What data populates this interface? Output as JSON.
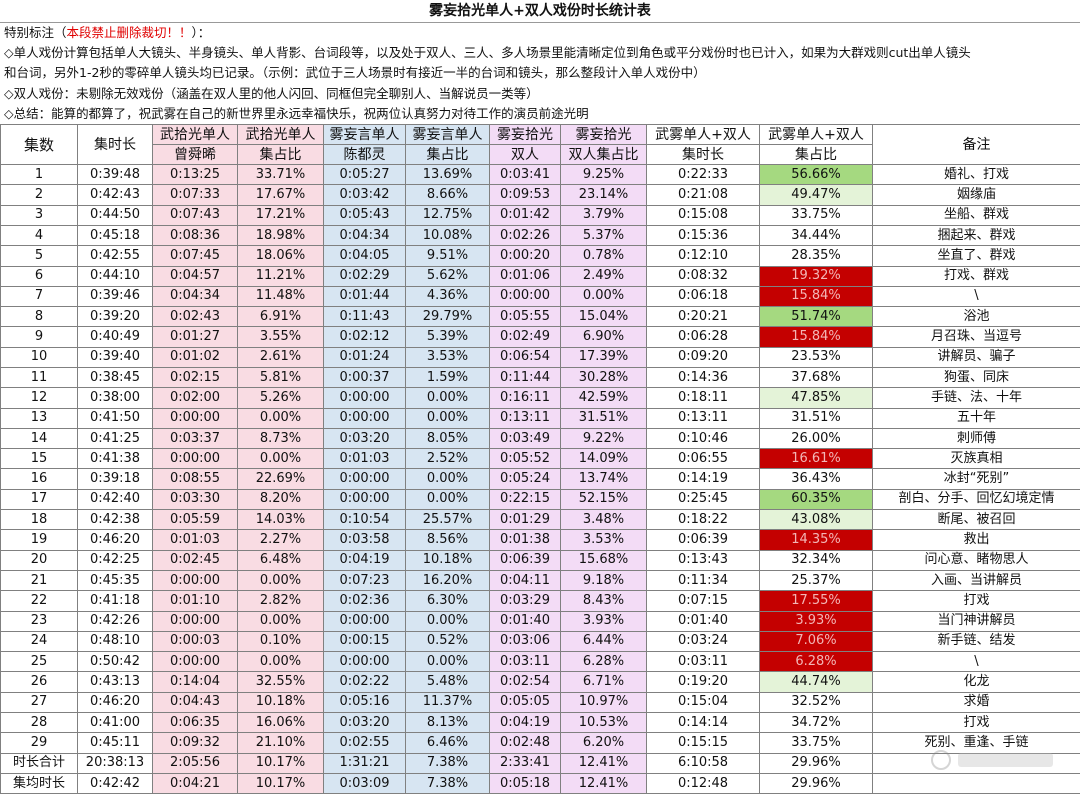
{
  "title": "雾妄拾光单人+双人戏份时长统计表",
  "notes": {
    "special_prefix": "特别标注（",
    "special_warn": "本段禁止删除裁切！！",
    "special_suffix": "）：",
    "line1": "◇单人戏份计算包括单人大镜头、半身镜头、单人背影、台词段等，以及处于双人、三人、多人场景里能清晰定位到角色或平分戏份时也已计入，如果为大群戏则cut出单人镜头",
    "line2": "和台词，另外1-2秒的零碎单人镜头均已记录。（示例：武位于三人场景时有接近一半的台词和镜头，那么整段计入单人戏份中）",
    "line3": "◇双人戏份：未剔除无效戏份（涵盖在双人里的他人闪回、同框但完全聊别人、当解说员一类等）",
    "line4": "◇总结：能算的都算了，祝武雾在自己的新世界里永远幸福快乐，祝两位认真努力对待工作的演员前途光明"
  },
  "header": {
    "ep": "集数",
    "dur": "集时长",
    "h1a": "武拾光单人",
    "h1b": "曾舜晞",
    "h2a": "武拾光单人",
    "h2b": "集占比",
    "h3a": "雾妄言单人",
    "h3b": "陈都灵",
    "h4a": "雾妄言单人",
    "h4b": "集占比",
    "h5a": "雾妄拾光",
    "h5b": "双人",
    "h6a": "雾妄拾光",
    "h6b": "双人集占比",
    "h7a": "武雾单人+双人",
    "h7b": "集时长",
    "h8a": "武雾单人+双人",
    "h8b": "集占比",
    "note": "备注"
  },
  "rows": [
    {
      "ep": "1",
      "dur": "0:39:48",
      "wu": "0:13:25",
      "wup": "33.71%",
      "xu": "0:05:27",
      "xup": "13.69%",
      "duo": "0:03:41",
      "duop": "9.25%",
      "tot": "0:22:33",
      "totp": "56.66%",
      "hl": "green",
      "note": "婚礼、打戏"
    },
    {
      "ep": "2",
      "dur": "0:42:43",
      "wu": "0:07:33",
      "wup": "17.67%",
      "xu": "0:03:42",
      "xup": "8.66%",
      "duo": "0:09:53",
      "duop": "23.14%",
      "tot": "0:21:08",
      "totp": "49.47%",
      "hl": "lightgreen",
      "note": "姻缘庙"
    },
    {
      "ep": "3",
      "dur": "0:44:50",
      "wu": "0:07:43",
      "wup": "17.21%",
      "xu": "0:05:43",
      "xup": "12.75%",
      "duo": "0:01:42",
      "duop": "3.79%",
      "tot": "0:15:08",
      "totp": "33.75%",
      "hl": "",
      "note": "坐船、群戏"
    },
    {
      "ep": "4",
      "dur": "0:45:18",
      "wu": "0:08:36",
      "wup": "18.98%",
      "xu": "0:04:34",
      "xup": "10.08%",
      "duo": "0:02:26",
      "duop": "5.37%",
      "tot": "0:15:36",
      "totp": "34.44%",
      "hl": "",
      "note": "捆起来、群戏"
    },
    {
      "ep": "5",
      "dur": "0:42:55",
      "wu": "0:07:45",
      "wup": "18.06%",
      "xu": "0:04:05",
      "xup": "9.51%",
      "duo": "0:00:20",
      "duop": "0.78%",
      "tot": "0:12:10",
      "totp": "28.35%",
      "hl": "",
      "note": "坐直了、群戏"
    },
    {
      "ep": "6",
      "dur": "0:44:10",
      "wu": "0:04:57",
      "wup": "11.21%",
      "xu": "0:02:29",
      "xup": "5.62%",
      "duo": "0:01:06",
      "duop": "2.49%",
      "tot": "0:08:32",
      "totp": "19.32%",
      "hl": "red",
      "note": "打戏、群戏"
    },
    {
      "ep": "7",
      "dur": "0:39:46",
      "wu": "0:04:34",
      "wup": "11.48%",
      "xu": "0:01:44",
      "xup": "4.36%",
      "duo": "0:00:00",
      "duop": "0.00%",
      "tot": "0:06:18",
      "totp": "15.84%",
      "hl": "red",
      "note": "\\"
    },
    {
      "ep": "8",
      "dur": "0:39:20",
      "wu": "0:02:43",
      "wup": "6.91%",
      "xu": "0:11:43",
      "xup": "29.79%",
      "duo": "0:05:55",
      "duop": "15.04%",
      "tot": "0:20:21",
      "totp": "51.74%",
      "hl": "green",
      "note": "浴池"
    },
    {
      "ep": "9",
      "dur": "0:40:49",
      "wu": "0:01:27",
      "wup": "3.55%",
      "xu": "0:02:12",
      "xup": "5.39%",
      "duo": "0:02:49",
      "duop": "6.90%",
      "tot": "0:06:28",
      "totp": "15.84%",
      "hl": "red",
      "note": "月召珠、当逗号"
    },
    {
      "ep": "10",
      "dur": "0:39:40",
      "wu": "0:01:02",
      "wup": "2.61%",
      "xu": "0:01:24",
      "xup": "3.53%",
      "duo": "0:06:54",
      "duop": "17.39%",
      "tot": "0:09:20",
      "totp": "23.53%",
      "hl": "",
      "note": "讲解员、骗子"
    },
    {
      "ep": "11",
      "dur": "0:38:45",
      "wu": "0:02:15",
      "wup": "5.81%",
      "xu": "0:00:37",
      "xup": "1.59%",
      "duo": "0:11:44",
      "duop": "30.28%",
      "tot": "0:14:36",
      "totp": "37.68%",
      "hl": "",
      "note": "狗蛋、同床"
    },
    {
      "ep": "12",
      "dur": "0:38:00",
      "wu": "0:02:00",
      "wup": "5.26%",
      "xu": "0:00:00",
      "xup": "0.00%",
      "duo": "0:16:11",
      "duop": "42.59%",
      "tot": "0:18:11",
      "totp": "47.85%",
      "hl": "lightgreen",
      "note": "手链、法、十年"
    },
    {
      "ep": "13",
      "dur": "0:41:50",
      "wu": "0:00:00",
      "wup": "0.00%",
      "xu": "0:00:00",
      "xup": "0.00%",
      "duo": "0:13:11",
      "duop": "31.51%",
      "tot": "0:13:11",
      "totp": "31.51%",
      "hl": "",
      "note": "五十年"
    },
    {
      "ep": "14",
      "dur": "0:41:25",
      "wu": "0:03:37",
      "wup": "8.73%",
      "xu": "0:03:20",
      "xup": "8.05%",
      "duo": "0:03:49",
      "duop": "9.22%",
      "tot": "0:10:46",
      "totp": "26.00%",
      "hl": "",
      "note": "刺师傅"
    },
    {
      "ep": "15",
      "dur": "0:41:38",
      "wu": "0:00:00",
      "wup": "0.00%",
      "xu": "0:01:03",
      "xup": "2.52%",
      "duo": "0:05:52",
      "duop": "14.09%",
      "tot": "0:06:55",
      "totp": "16.61%",
      "hl": "red",
      "note": "灭族真相"
    },
    {
      "ep": "16",
      "dur": "0:39:18",
      "wu": "0:08:55",
      "wup": "22.69%",
      "xu": "0:00:00",
      "xup": "0.00%",
      "duo": "0:05:24",
      "duop": "13.74%",
      "tot": "0:14:19",
      "totp": "36.43%",
      "hl": "",
      "note": "冰封“死别”"
    },
    {
      "ep": "17",
      "dur": "0:42:40",
      "wu": "0:03:30",
      "wup": "8.20%",
      "xu": "0:00:00",
      "xup": "0.00%",
      "duo": "0:22:15",
      "duop": "52.15%",
      "tot": "0:25:45",
      "totp": "60.35%",
      "hl": "green",
      "note": "剖白、分手、回忆幻境定情"
    },
    {
      "ep": "18",
      "dur": "0:42:38",
      "wu": "0:05:59",
      "wup": "14.03%",
      "xu": "0:10:54",
      "xup": "25.57%",
      "duo": "0:01:29",
      "duop": "3.48%",
      "tot": "0:18:22",
      "totp": "43.08%",
      "hl": "lightgreen",
      "note": "断尾、被召回"
    },
    {
      "ep": "19",
      "dur": "0:46:20",
      "wu": "0:01:03",
      "wup": "2.27%",
      "xu": "0:03:58",
      "xup": "8.56%",
      "duo": "0:01:38",
      "duop": "3.53%",
      "tot": "0:06:39",
      "totp": "14.35%",
      "hl": "red",
      "note": "救出"
    },
    {
      "ep": "20",
      "dur": "0:42:25",
      "wu": "0:02:45",
      "wup": "6.48%",
      "xu": "0:04:19",
      "xup": "10.18%",
      "duo": "0:06:39",
      "duop": "15.68%",
      "tot": "0:13:43",
      "totp": "32.34%",
      "hl": "",
      "note": "问心意、睹物思人"
    },
    {
      "ep": "21",
      "dur": "0:45:35",
      "wu": "0:00:00",
      "wup": "0.00%",
      "xu": "0:07:23",
      "xup": "16.20%",
      "duo": "0:04:11",
      "duop": "9.18%",
      "tot": "0:11:34",
      "totp": "25.37%",
      "hl": "",
      "note": "入画、当讲解员"
    },
    {
      "ep": "22",
      "dur": "0:41:18",
      "wu": "0:01:10",
      "wup": "2.82%",
      "xu": "0:02:36",
      "xup": "6.30%",
      "duo": "0:03:29",
      "duop": "8.43%",
      "tot": "0:07:15",
      "totp": "17.55%",
      "hl": "red",
      "note": "打戏"
    },
    {
      "ep": "23",
      "dur": "0:42:26",
      "wu": "0:00:00",
      "wup": "0.00%",
      "xu": "0:00:00",
      "xup": "0.00%",
      "duo": "0:01:40",
      "duop": "3.93%",
      "tot": "0:01:40",
      "totp": "3.93%",
      "hl": "red",
      "note": "当门神讲解员"
    },
    {
      "ep": "24",
      "dur": "0:48:10",
      "wu": "0:00:03",
      "wup": "0.10%",
      "xu": "0:00:15",
      "xup": "0.52%",
      "duo": "0:03:06",
      "duop": "6.44%",
      "tot": "0:03:24",
      "totp": "7.06%",
      "hl": "red",
      "note": "新手链、结发"
    },
    {
      "ep": "25",
      "dur": "0:50:42",
      "wu": "0:00:00",
      "wup": "0.00%",
      "xu": "0:00:00",
      "xup": "0.00%",
      "duo": "0:03:11",
      "duop": "6.28%",
      "tot": "0:03:11",
      "totp": "6.28%",
      "hl": "red",
      "note": "\\"
    },
    {
      "ep": "26",
      "dur": "0:43:13",
      "wu": "0:14:04",
      "wup": "32.55%",
      "xu": "0:02:22",
      "xup": "5.48%",
      "duo": "0:02:54",
      "duop": "6.71%",
      "tot": "0:19:20",
      "totp": "44.74%",
      "hl": "lightgreen",
      "note": "化龙"
    },
    {
      "ep": "27",
      "dur": "0:46:20",
      "wu": "0:04:43",
      "wup": "10.18%",
      "xu": "0:05:16",
      "xup": "11.37%",
      "duo": "0:05:05",
      "duop": "10.97%",
      "tot": "0:15:04",
      "totp": "32.52%",
      "hl": "",
      "note": "求婚"
    },
    {
      "ep": "28",
      "dur": "0:41:00",
      "wu": "0:06:35",
      "wup": "16.06%",
      "xu": "0:03:20",
      "xup": "8.13%",
      "duo": "0:04:19",
      "duop": "10.53%",
      "tot": "0:14:14",
      "totp": "34.72%",
      "hl": "",
      "note": "打戏"
    },
    {
      "ep": "29",
      "dur": "0:45:11",
      "wu": "0:09:32",
      "wup": "21.10%",
      "xu": "0:02:55",
      "xup": "6.46%",
      "duo": "0:02:48",
      "duop": "6.20%",
      "tot": "0:15:15",
      "totp": "33.75%",
      "hl": "",
      "note": "死别、重逢、手链"
    },
    {
      "ep": "时长合计",
      "dur": "20:38:13",
      "wu": "2:05:56",
      "wup": "10.17%",
      "xu": "1:31:21",
      "xup": "7.38%",
      "duo": "2:33:41",
      "duop": "12.41%",
      "tot": "6:10:58",
      "totp": "29.96%",
      "hl": "",
      "note": ""
    },
    {
      "ep": "集均时长",
      "dur": "0:42:42",
      "wu": "0:04:21",
      "wup": "10.17%",
      "xu": "0:03:09",
      "xup": "7.38%",
      "duo": "0:05:18",
      "duop": "12.41%",
      "tot": "0:12:48",
      "totp": "29.96%",
      "hl": "",
      "note": ""
    }
  ],
  "colors": {
    "pink": "#f9dce3",
    "blue": "#d7e5f2",
    "lavender": "#f3dcf6",
    "green": "#a5d980",
    "lightgreen": "#e4f3d8",
    "red": "#c40000"
  }
}
